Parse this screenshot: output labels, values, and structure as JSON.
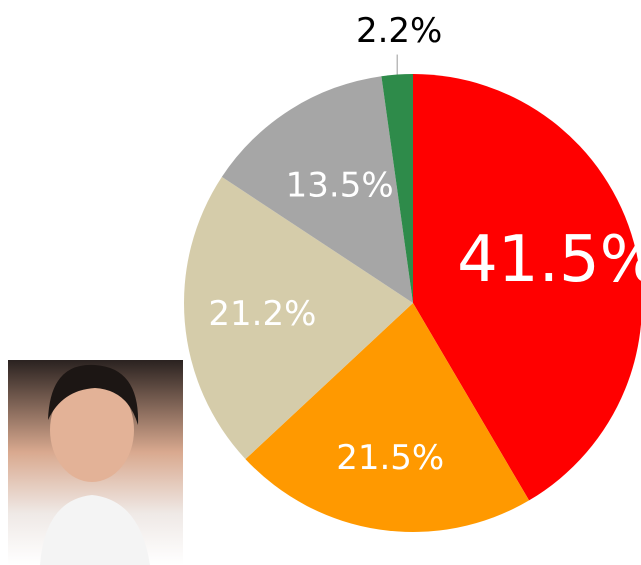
{
  "chart_data": {
    "type": "pie",
    "values": [
      41.5,
      21.5,
      21.2,
      13.5,
      2.2
    ],
    "value_labels": [
      "41.5%",
      "21.5%",
      "21.2%",
      "13.5%",
      "2.2%"
    ],
    "colors": [
      "#ff0000",
      "#ff9900",
      "#d5ccaa",
      "#a6a6a6",
      "#2e8b4a"
    ]
  }
}
